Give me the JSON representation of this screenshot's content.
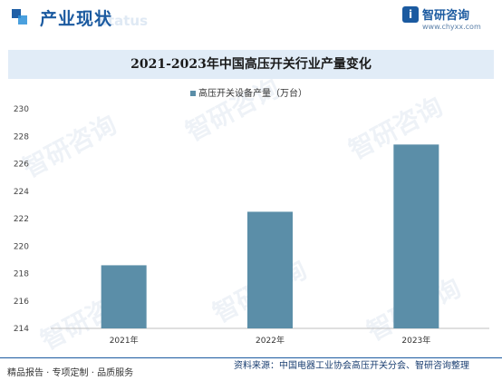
{
  "header": {
    "section_title": "产业现状",
    "watermark_word": "status",
    "logo_mark": "i",
    "logo_name": "智研咨询",
    "logo_url": "www.chyxx.com"
  },
  "watermark_text": "智研咨询",
  "chart_data": {
    "type": "bar",
    "title": "2021-2023年中国高压开关行业产量变化",
    "categories": [
      "2021年",
      "2022年",
      "2023年"
    ],
    "series": [
      {
        "name": "高压开关设备产量（万台）",
        "values": [
          218.6,
          222.5,
          227.4
        ]
      }
    ],
    "ylim": [
      214,
      230
    ],
    "yticks": [
      214,
      216,
      218,
      220,
      222,
      224,
      226,
      228,
      230
    ],
    "legend_position": "top",
    "grid": false,
    "bar_color": "#5b8ea8"
  },
  "footer": {
    "tagline": "精品报告 · 专项定制 · 品质服务",
    "source": "资料来源：中国电器工业协会高压开关分会、智研咨询整理"
  }
}
